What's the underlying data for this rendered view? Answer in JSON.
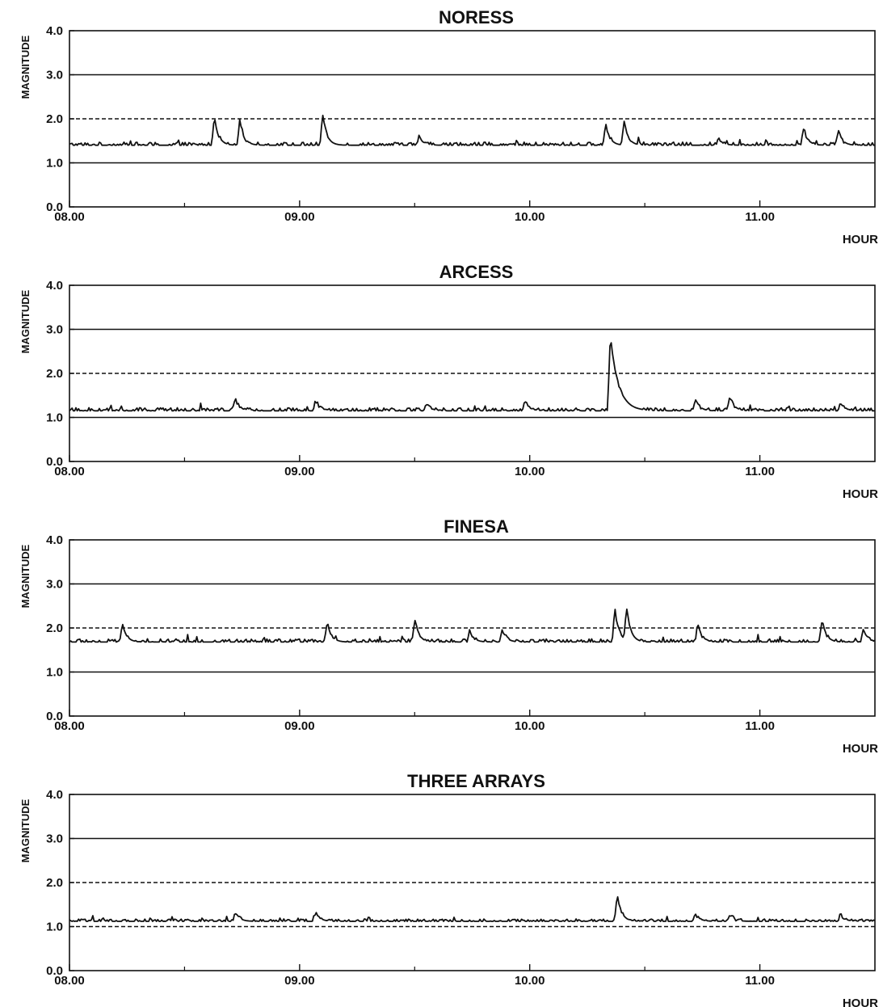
{
  "colors": {
    "line": "#111111",
    "background": "#ffffff"
  },
  "chart_data": [
    {
      "type": "line",
      "title": "NORESS",
      "ylabel": "MAGNITUDE",
      "xlabel": "HOUR",
      "xlim": [
        8.0,
        11.5
      ],
      "ylim": [
        0.0,
        4.0
      ],
      "x_ticks": [
        "08.00",
        "09.00",
        "10.00",
        "11.00"
      ],
      "y_ticks": [
        "0.0",
        "1.0",
        "2.0",
        "3.0",
        "4.0"
      ],
      "reference_lines": [
        {
          "y": 3.0,
          "style": "solid"
        },
        {
          "y": 2.0,
          "style": "dashed"
        },
        {
          "y": 1.0,
          "style": "solid"
        }
      ],
      "baseline": 1.4,
      "noise": 0.07,
      "events": [
        {
          "x": 8.63,
          "peak": 2.05
        },
        {
          "x": 8.74,
          "peak": 2.0
        },
        {
          "x": 9.1,
          "peak": 2.1
        },
        {
          "x": 9.52,
          "peak": 1.65
        },
        {
          "x": 10.33,
          "peak": 1.9
        },
        {
          "x": 10.41,
          "peak": 1.95
        },
        {
          "x": 10.82,
          "peak": 1.6
        },
        {
          "x": 11.19,
          "peak": 1.8
        },
        {
          "x": 11.34,
          "peak": 1.75
        }
      ],
      "grid": false
    },
    {
      "type": "line",
      "title": "ARCESS",
      "ylabel": "MAGNITUDE",
      "xlabel": "HOUR",
      "xlim": [
        8.0,
        11.5
      ],
      "ylim": [
        0.0,
        4.0
      ],
      "x_ticks": [
        "08.00",
        "09.00",
        "10.00",
        "11.00"
      ],
      "y_ticks": [
        "0.0",
        "1.0",
        "2.0",
        "3.0",
        "4.0"
      ],
      "reference_lines": [
        {
          "y": 3.0,
          "style": "solid"
        },
        {
          "y": 2.0,
          "style": "dashed"
        },
        {
          "y": 1.0,
          "style": "solid"
        }
      ],
      "baseline": 1.15,
      "noise": 0.07,
      "events": [
        {
          "x": 8.72,
          "peak": 1.45
        },
        {
          "x": 9.07,
          "peak": 1.4
        },
        {
          "x": 9.55,
          "peak": 1.35
        },
        {
          "x": 9.98,
          "peak": 1.4
        },
        {
          "x": 10.35,
          "peak": 2.85
        },
        {
          "x": 10.72,
          "peak": 1.45
        },
        {
          "x": 10.87,
          "peak": 1.5
        },
        {
          "x": 11.35,
          "peak": 1.35
        }
      ],
      "grid": false
    },
    {
      "type": "line",
      "title": "FINESA",
      "ylabel": "MAGNITUDE",
      "xlabel": "HOUR",
      "xlim": [
        8.0,
        11.5
      ],
      "ylim": [
        0.0,
        4.0
      ],
      "x_ticks": [
        "08.00",
        "09.00",
        "10.00",
        "11.00"
      ],
      "y_ticks": [
        "0.0",
        "1.0",
        "2.0",
        "3.0",
        "4.0"
      ],
      "reference_lines": [
        {
          "y": 3.0,
          "style": "solid"
        },
        {
          "y": 2.0,
          "style": "dashed"
        },
        {
          "y": 1.0,
          "style": "solid"
        }
      ],
      "baseline": 1.68,
      "noise": 0.07,
      "events": [
        {
          "x": 8.23,
          "peak": 2.1
        },
        {
          "x": 9.12,
          "peak": 2.15
        },
        {
          "x": 9.5,
          "peak": 2.2
        },
        {
          "x": 9.74,
          "peak": 1.95
        },
        {
          "x": 9.88,
          "peak": 2.0
        },
        {
          "x": 10.37,
          "peak": 2.45
        },
        {
          "x": 10.42,
          "peak": 2.5
        },
        {
          "x": 10.73,
          "peak": 2.1
        },
        {
          "x": 11.27,
          "peak": 2.2
        },
        {
          "x": 11.45,
          "peak": 1.95
        }
      ],
      "grid": false
    },
    {
      "type": "line",
      "title": "THREE ARRAYS",
      "ylabel": "MAGNITUDE",
      "xlabel": "HOUR",
      "xlim": [
        8.0,
        11.5
      ],
      "ylim": [
        0.0,
        4.0
      ],
      "x_ticks": [
        "08.00",
        "09.00",
        "10.00",
        "11.00"
      ],
      "y_ticks": [
        "0.0",
        "1.0",
        "2.0",
        "3.0",
        "4.0"
      ],
      "reference_lines": [
        {
          "y": 3.0,
          "style": "solid"
        },
        {
          "y": 2.0,
          "style": "dashed"
        },
        {
          "y": 1.0,
          "style": "dashed"
        }
      ],
      "baseline": 1.12,
      "noise": 0.05,
      "events": [
        {
          "x": 8.72,
          "peak": 1.35
        },
        {
          "x": 9.07,
          "peak": 1.35
        },
        {
          "x": 10.38,
          "peak": 1.75
        },
        {
          "x": 10.72,
          "peak": 1.3
        },
        {
          "x": 10.87,
          "peak": 1.3
        },
        {
          "x": 11.35,
          "peak": 1.3
        }
      ],
      "grid": false
    }
  ]
}
